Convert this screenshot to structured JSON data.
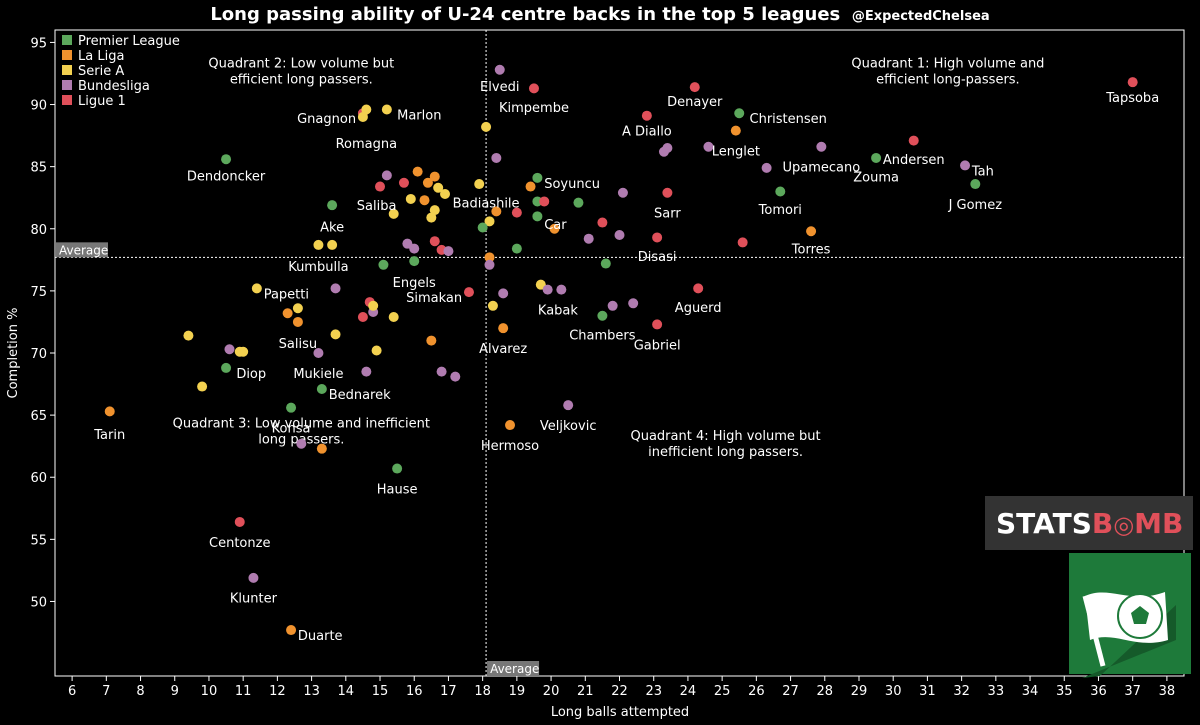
{
  "chart_data": {
    "type": "scatter",
    "title": "Long passing ability of U-24 centre backs in the top 5 leagues",
    "subtitle": "@ExpectedChelsea",
    "xlabel": "Long balls attempted",
    "ylabel": "Completion %",
    "xlim": [
      5.5,
      38.5
    ],
    "ylim": [
      44,
      96
    ],
    "xticks": [
      6,
      7,
      8,
      9,
      10,
      11,
      12,
      13,
      14,
      15,
      16,
      17,
      18,
      19,
      20,
      21,
      22,
      23,
      24,
      25,
      26,
      27,
      28,
      29,
      30,
      31,
      32,
      33,
      34,
      35,
      36,
      37,
      38
    ],
    "yticks": [
      50,
      55,
      60,
      65,
      70,
      75,
      80,
      85,
      90,
      95
    ],
    "grid": false,
    "legend": "top-left",
    "average": {
      "x": 18.1,
      "y": 77.7,
      "label": "Average"
    },
    "leagues": [
      {
        "name": "Premier League",
        "color": "#5ca85c"
      },
      {
        "name": "La Liga",
        "color": "#f0922e"
      },
      {
        "name": "Serie A",
        "color": "#f3d150"
      },
      {
        "name": "Bundesliga",
        "color": "#b07cb0"
      },
      {
        "name": "Ligue 1",
        "color": "#e0505a"
      }
    ],
    "quadrants": [
      {
        "lines": [
          "Quadrant 1: High volume and",
          "efficient long-passers."
        ],
        "cx": 31.6,
        "y": 93.0
      },
      {
        "lines": [
          "Quadrant 2: Low volume but",
          "efficient long passers."
        ],
        "cx": 12.7,
        "y": 93.0
      },
      {
        "lines": [
          "Quadrant 3: Low volume and inefficient",
          "long passers."
        ],
        "cx": 12.7,
        "y": 64.0
      },
      {
        "lines": [
          "Quadrant 4: High volume but",
          "inefficient long passers."
        ],
        "cx": 25.1,
        "y": 63.0
      }
    ],
    "points": [
      {
        "x": 37.0,
        "y": 91.8,
        "l": 4,
        "label": "Tapsoba",
        "lx": 37.0,
        "ly": 90.6,
        "anchor": "middle"
      },
      {
        "x": 24.2,
        "y": 91.4,
        "l": 4,
        "label": "Denayer",
        "lx": 24.2,
        "ly": 90.3,
        "anchor": "middle"
      },
      {
        "x": 18.5,
        "y": 92.8,
        "l": 3,
        "label": "Elvedi",
        "lx": 18.5,
        "ly": 91.5,
        "anchor": "middle"
      },
      {
        "x": 19.5,
        "y": 91.3,
        "l": 4,
        "label": "Kimpembe",
        "lx": 19.5,
        "ly": 89.8,
        "anchor": "middle"
      },
      {
        "x": 25.5,
        "y": 89.3,
        "l": 0,
        "label": "Christensen",
        "lx": 25.8,
        "ly": 88.9,
        "anchor": "start"
      },
      {
        "x": 22.8,
        "y": 89.1,
        "l": 4,
        "label": "A Diallo",
        "lx": 22.8,
        "ly": 87.9,
        "anchor": "middle"
      },
      {
        "x": 25.4,
        "y": 87.9,
        "l": 1,
        "label": "Lenglet",
        "lx": 25.4,
        "ly": 86.3,
        "anchor": "middle"
      },
      {
        "x": 14.5,
        "y": 89.3,
        "l": 4,
        "label": "Gnagnon",
        "lx": 14.3,
        "ly": 88.9,
        "anchor": "end"
      },
      {
        "x": 14.5,
        "y": 89.0,
        "l": 2,
        "label": "Romagna",
        "lx": 14.6,
        "ly": 86.9,
        "anchor": "middle"
      },
      {
        "x": 14.6,
        "y": 89.6,
        "l": 2
      },
      {
        "x": 15.2,
        "y": 89.6,
        "l": 2,
        "label": "Marlon",
        "lx": 15.5,
        "ly": 89.2,
        "anchor": "start"
      },
      {
        "x": 18.1,
        "y": 88.2,
        "l": 2
      },
      {
        "x": 30.6,
        "y": 87.1,
        "l": 4,
        "label": "Andersen",
        "lx": 30.6,
        "ly": 85.6,
        "anchor": "middle"
      },
      {
        "x": 27.9,
        "y": 86.6,
        "l": 3,
        "label": "Upamecano",
        "lx": 27.9,
        "ly": 85.0,
        "anchor": "middle"
      },
      {
        "x": 24.6,
        "y": 86.6,
        "l": 3
      },
      {
        "x": 29.5,
        "y": 85.7,
        "l": 0,
        "label": "Zouma",
        "lx": 29.5,
        "ly": 84.2,
        "anchor": "middle"
      },
      {
        "x": 32.1,
        "y": 85.1,
        "l": 3,
        "label": "Tah",
        "lx": 32.3,
        "ly": 84.7,
        "anchor": "start"
      },
      {
        "x": 32.4,
        "y": 83.6,
        "l": 0,
        "label": "J Gomez",
        "lx": 32.4,
        "ly": 82.0,
        "anchor": "middle"
      },
      {
        "x": 26.3,
        "y": 84.9,
        "l": 3
      },
      {
        "x": 23.4,
        "y": 86.5,
        "l": 3
      },
      {
        "x": 23.3,
        "y": 86.2,
        "l": 3
      },
      {
        "x": 10.5,
        "y": 85.6,
        "l": 0,
        "label": "Dendoncker",
        "lx": 10.5,
        "ly": 84.3,
        "anchor": "middle"
      },
      {
        "x": 26.7,
        "y": 83.0,
        "l": 0,
        "label": "Tomori",
        "lx": 26.7,
        "ly": 81.6,
        "anchor": "middle"
      },
      {
        "x": 23.4,
        "y": 82.9,
        "l": 4,
        "label": "Sarr",
        "lx": 23.4,
        "ly": 81.3,
        "anchor": "middle"
      },
      {
        "x": 22.1,
        "y": 82.9,
        "l": 3
      },
      {
        "x": 19.6,
        "y": 84.1,
        "l": 0,
        "label": "Soyuncu",
        "lx": 19.8,
        "ly": 83.7,
        "anchor": "start"
      },
      {
        "x": 19.4,
        "y": 83.4,
        "l": 1
      },
      {
        "x": 18.4,
        "y": 85.7,
        "l": 3
      },
      {
        "x": 17.9,
        "y": 83.6,
        "l": 2
      },
      {
        "x": 19.6,
        "y": 82.2,
        "l": 0
      },
      {
        "x": 19.8,
        "y": 82.2,
        "l": 4
      },
      {
        "x": 20.8,
        "y": 82.1,
        "l": 0
      },
      {
        "x": 18.4,
        "y": 81.4,
        "l": 1,
        "label": "Badiashile",
        "lx": 18.1,
        "ly": 82.1,
        "anchor": "middle"
      },
      {
        "x": 19.0,
        "y": 81.3,
        "l": 4
      },
      {
        "x": 19.6,
        "y": 81.0,
        "l": 0,
        "label": "Car",
        "lx": 19.8,
        "ly": 80.4,
        "anchor": "start"
      },
      {
        "x": 18.2,
        "y": 80.6,
        "l": 2
      },
      {
        "x": 18.0,
        "y": 80.1,
        "l": 0
      },
      {
        "x": 20.1,
        "y": 80.0,
        "l": 1
      },
      {
        "x": 21.5,
        "y": 80.5,
        "l": 4
      },
      {
        "x": 21.1,
        "y": 79.2,
        "l": 3
      },
      {
        "x": 22.0,
        "y": 79.5,
        "l": 3
      },
      {
        "x": 23.1,
        "y": 79.3,
        "l": 4,
        "label": "Disasi",
        "lx": 23.1,
        "ly": 77.8,
        "anchor": "middle"
      },
      {
        "x": 27.6,
        "y": 79.8,
        "l": 1,
        "label": "Torres",
        "lx": 27.6,
        "ly": 78.4,
        "anchor": "middle"
      },
      {
        "x": 25.6,
        "y": 78.9,
        "l": 4
      },
      {
        "x": 19.0,
        "y": 78.4,
        "l": 0
      },
      {
        "x": 21.6,
        "y": 77.2,
        "l": 0
      },
      {
        "x": 15.2,
        "y": 84.3,
        "l": 3
      },
      {
        "x": 15.0,
        "y": 83.4,
        "l": 4,
        "label": "Saliba",
        "lx": 14.9,
        "ly": 81.9,
        "anchor": "middle"
      },
      {
        "x": 15.7,
        "y": 83.7,
        "l": 4
      },
      {
        "x": 16.1,
        "y": 84.6,
        "l": 1
      },
      {
        "x": 16.4,
        "y": 83.7,
        "l": 1
      },
      {
        "x": 16.6,
        "y": 84.2,
        "l": 1
      },
      {
        "x": 16.7,
        "y": 83.3,
        "l": 2
      },
      {
        "x": 16.9,
        "y": 82.8,
        "l": 2
      },
      {
        "x": 15.9,
        "y": 82.4,
        "l": 2
      },
      {
        "x": 16.3,
        "y": 82.3,
        "l": 1
      },
      {
        "x": 16.6,
        "y": 81.5,
        "l": 2
      },
      {
        "x": 16.5,
        "y": 80.9,
        "l": 2
      },
      {
        "x": 15.4,
        "y": 81.2,
        "l": 2
      },
      {
        "x": 13.6,
        "y": 81.9,
        "l": 0,
        "label": "Ake",
        "lx": 13.6,
        "ly": 80.2,
        "anchor": "middle"
      },
      {
        "x": 13.2,
        "y": 78.7,
        "l": 2,
        "label": "Kumbulla",
        "lx": 13.2,
        "ly": 77.0,
        "anchor": "middle"
      },
      {
        "x": 13.6,
        "y": 78.7,
        "l": 2
      },
      {
        "x": 15.8,
        "y": 78.8,
        "l": 3
      },
      {
        "x": 16.0,
        "y": 78.4,
        "l": 3
      },
      {
        "x": 16.6,
        "y": 79.0,
        "l": 4
      },
      {
        "x": 16.8,
        "y": 78.3,
        "l": 4
      },
      {
        "x": 17.0,
        "y": 78.2,
        "l": 3
      },
      {
        "x": 16.0,
        "y": 77.4,
        "l": 0,
        "label": "Engels",
        "lx": 16.0,
        "ly": 75.7,
        "anchor": "middle"
      },
      {
        "x": 15.1,
        "y": 77.1,
        "l": 0
      },
      {
        "x": 18.2,
        "y": 77.7,
        "l": 1
      },
      {
        "x": 18.2,
        "y": 77.1,
        "l": 3
      },
      {
        "x": 17.6,
        "y": 74.9,
        "l": 4,
        "label": "Simakan",
        "lx": 17.4,
        "ly": 74.5,
        "anchor": "end"
      },
      {
        "x": 18.3,
        "y": 73.8,
        "l": 2
      },
      {
        "x": 18.6,
        "y": 74.8,
        "l": 3
      },
      {
        "x": 19.7,
        "y": 75.5,
        "l": 2
      },
      {
        "x": 19.9,
        "y": 75.1,
        "l": 3,
        "label": "Kabak",
        "lx": 20.2,
        "ly": 73.5,
        "anchor": "middle"
      },
      {
        "x": 20.3,
        "y": 75.1,
        "l": 3
      },
      {
        "x": 21.5,
        "y": 73.0,
        "l": 0,
        "label": "Chambers",
        "lx": 21.5,
        "ly": 71.5,
        "anchor": "middle"
      },
      {
        "x": 21.8,
        "y": 73.8,
        "l": 3
      },
      {
        "x": 22.4,
        "y": 74.0,
        "l": 3
      },
      {
        "x": 24.3,
        "y": 75.2,
        "l": 4,
        "label": "Aguerd",
        "lx": 24.3,
        "ly": 73.7,
        "anchor": "middle"
      },
      {
        "x": 23.1,
        "y": 72.3,
        "l": 4,
        "label": "Gabriel",
        "lx": 23.1,
        "ly": 70.7,
        "anchor": "middle"
      },
      {
        "x": 18.6,
        "y": 72.0,
        "l": 1,
        "label": "Alvarez",
        "lx": 18.6,
        "ly": 70.4,
        "anchor": "middle"
      },
      {
        "x": 11.4,
        "y": 75.2,
        "l": 2,
        "label": "Papetti",
        "lx": 11.6,
        "ly": 74.8,
        "anchor": "start"
      },
      {
        "x": 13.7,
        "y": 75.2,
        "l": 3
      },
      {
        "x": 12.3,
        "y": 73.2,
        "l": 1
      },
      {
        "x": 12.6,
        "y": 73.6,
        "l": 2
      },
      {
        "x": 12.6,
        "y": 72.5,
        "l": 1,
        "label": "Salisu",
        "lx": 12.6,
        "ly": 70.8,
        "anchor": "middle"
      },
      {
        "x": 14.7,
        "y": 74.1,
        "l": 4
      },
      {
        "x": 14.8,
        "y": 73.3,
        "l": 3
      },
      {
        "x": 14.8,
        "y": 73.8,
        "l": 2
      },
      {
        "x": 14.5,
        "y": 72.9,
        "l": 4
      },
      {
        "x": 15.4,
        "y": 72.9,
        "l": 2
      },
      {
        "x": 13.7,
        "y": 71.5,
        "l": 2
      },
      {
        "x": 16.5,
        "y": 71.0,
        "l": 1
      },
      {
        "x": 9.4,
        "y": 71.4,
        "l": 2
      },
      {
        "x": 10.6,
        "y": 70.3,
        "l": 3
      },
      {
        "x": 10.9,
        "y": 70.1,
        "l": 2
      },
      {
        "x": 11.0,
        "y": 70.1,
        "l": 2
      },
      {
        "x": 10.5,
        "y": 68.8,
        "l": 0,
        "label": "Diop",
        "lx": 10.8,
        "ly": 68.4,
        "anchor": "start"
      },
      {
        "x": 9.8,
        "y": 67.3,
        "l": 2
      },
      {
        "x": 13.2,
        "y": 70.0,
        "l": 3,
        "label": "Mukiele",
        "lx": 13.2,
        "ly": 68.4,
        "anchor": "middle"
      },
      {
        "x": 14.9,
        "y": 70.2,
        "l": 2
      },
      {
        "x": 14.6,
        "y": 68.5,
        "l": 3
      },
      {
        "x": 16.8,
        "y": 68.5,
        "l": 3
      },
      {
        "x": 17.2,
        "y": 68.1,
        "l": 3
      },
      {
        "x": 13.3,
        "y": 67.1,
        "l": 0,
        "label": "Bednarek",
        "lx": 13.5,
        "ly": 66.7,
        "anchor": "start"
      },
      {
        "x": 7.1,
        "y": 65.3,
        "l": 1,
        "label": "Tarin",
        "lx": 7.1,
        "ly": 63.5,
        "anchor": "middle"
      },
      {
        "x": 12.4,
        "y": 65.6,
        "l": 0,
        "label": "Konsa",
        "lx": 12.4,
        "ly": 64.0,
        "anchor": "middle"
      },
      {
        "x": 20.5,
        "y": 65.8,
        "l": 3,
        "label": "Veljkovic",
        "lx": 20.5,
        "ly": 64.2,
        "anchor": "middle"
      },
      {
        "x": 18.8,
        "y": 64.2,
        "l": 1,
        "label": "Hermoso",
        "lx": 18.8,
        "ly": 62.6,
        "anchor": "middle"
      },
      {
        "x": 12.7,
        "y": 62.7,
        "l": 3
      },
      {
        "x": 13.3,
        "y": 62.3,
        "l": 1
      },
      {
        "x": 15.5,
        "y": 60.7,
        "l": 0,
        "label": "Hause",
        "lx": 15.5,
        "ly": 59.1,
        "anchor": "middle"
      },
      {
        "x": 10.9,
        "y": 56.4,
        "l": 4,
        "label": "Centonze",
        "lx": 10.9,
        "ly": 54.8,
        "anchor": "middle"
      },
      {
        "x": 11.3,
        "y": 51.9,
        "l": 3,
        "label": "Klunter",
        "lx": 11.3,
        "ly": 50.3,
        "anchor": "middle"
      },
      {
        "x": 12.4,
        "y": 47.7,
        "l": 1,
        "label": "Duarte",
        "lx": 12.6,
        "ly": 47.3,
        "anchor": "start"
      }
    ]
  },
  "logos": {
    "statsbomb": {
      "prefix": "STATS",
      "suffix": "B",
      "rest": "MB"
    }
  }
}
